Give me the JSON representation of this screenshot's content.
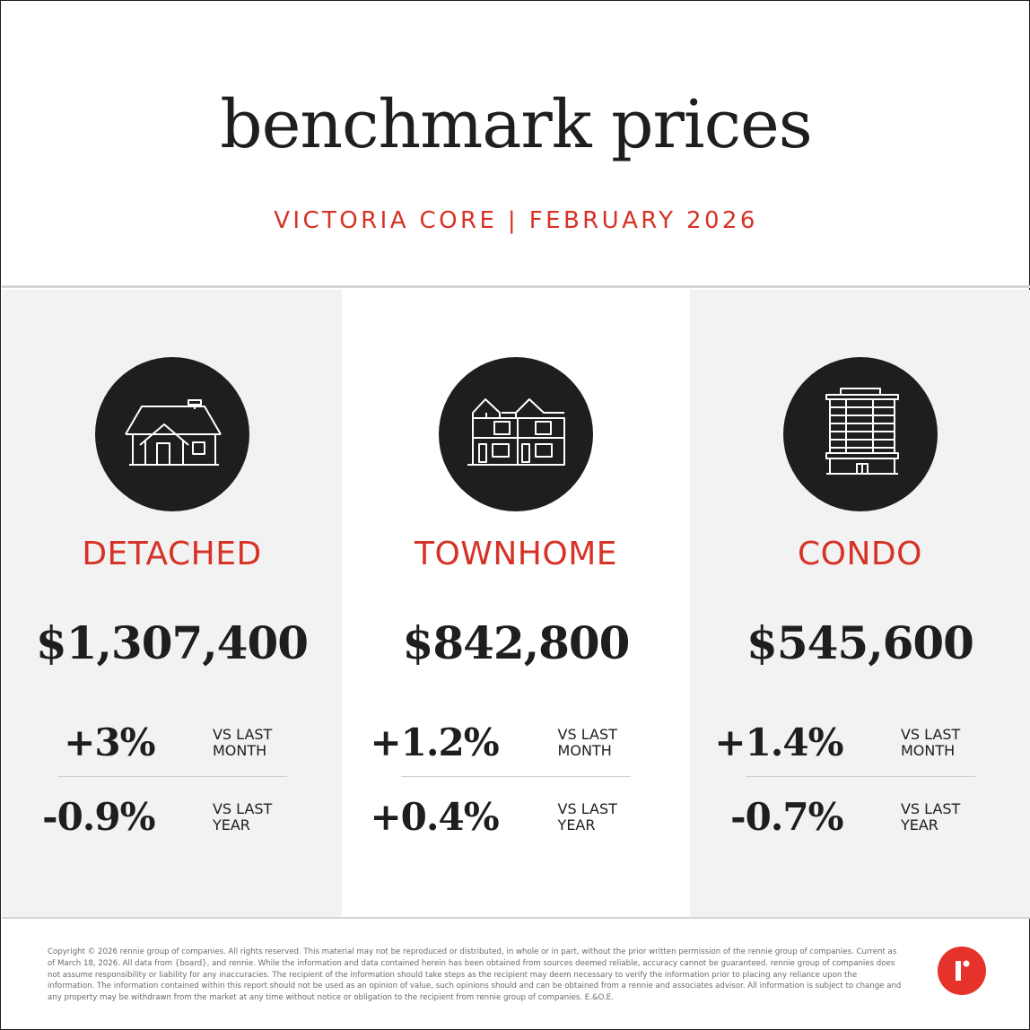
{
  "header": {
    "title": "benchmark prices",
    "subtitle": "VICTORIA CORE | FEBRUARY 2026"
  },
  "columns": [
    {
      "icon": "house-icon",
      "label": "DETACHED",
      "price": "$1,307,400",
      "month_change": "+3%",
      "month_label": "VS LAST MONTH",
      "year_change": "-0.9%",
      "year_label": "VS LAST YEAR"
    },
    {
      "icon": "townhome-icon",
      "label": "TOWNHOME",
      "price": "$842,800",
      "month_change": "+1.2%",
      "month_label": "VS LAST MONTH",
      "year_change": "+0.4%",
      "year_label": "VS LAST YEAR"
    },
    {
      "icon": "condo-building-icon",
      "label": "CONDO",
      "price": "$545,600",
      "month_change": "+1.4%",
      "month_label": "VS LAST MONTH",
      "year_change": "-0.7%",
      "year_label": "VS LAST YEAR"
    }
  ],
  "footer": {
    "legal": "Copyright © 2026 rennie group of companies. All rights reserved. This material may not be reproduced or distributed, in whole or in part, without the prior written permission of the rennie group of companies. Current as of March 18, 2026. All data from {board}, and rennie. While the information and data contained herein has been obtained from sources deemed reliable, accuracy cannot be guaranteed. rennie group of companies does not assume responsibility or liability for any inaccuracies. The recipient of the information should take steps as the recipient may deem necessary to verify the information prior to placing any reliance upon the information. The information contained within this report should not be used as an opinion of value, such opinions should and can be obtained from a rennie and associates advisor. All information is subject to change and any property may be withdrawn from the market at any time without notice or obligation to the recipient from rennie group of companies. E.&O.E.",
    "logo": "rennie-logo-icon"
  },
  "colors": {
    "accent_red": "#d63226",
    "dark": "#1f1d1e",
    "panel_gray": "#f2f2f2"
  }
}
